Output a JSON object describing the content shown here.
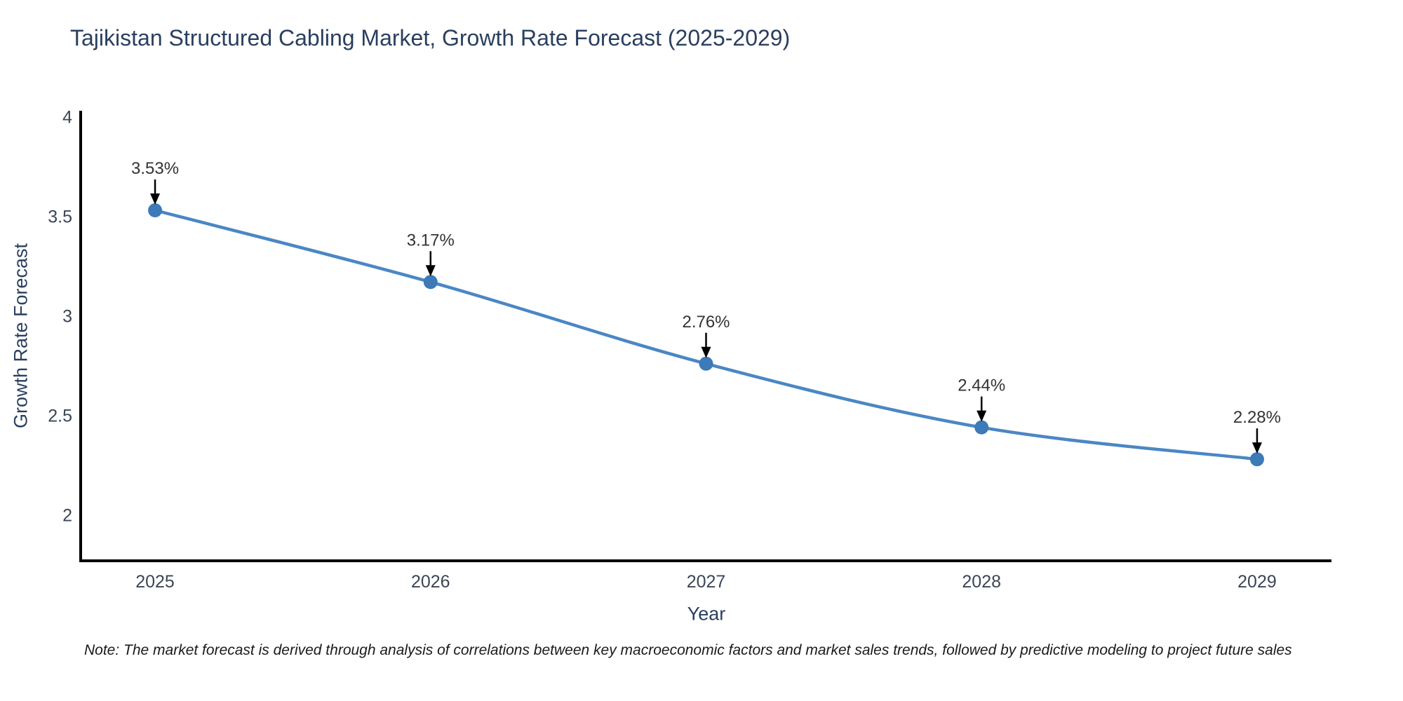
{
  "header": {
    "title": "Tajikistan Structured Cabling Market, Growth Rate Forecast (2025-2029)"
  },
  "footer": {
    "note": "Note: The market forecast is derived through analysis of correlations between key macroeconomic factors and market sales trends, followed by predictive modeling to project future sales"
  },
  "chart_data": {
    "type": "line",
    "title": "Tajikistan Structured Cabling Market, Growth Rate Forecast (2025-2029)",
    "x": [
      2025,
      2026,
      2027,
      2028,
      2029
    ],
    "y": [
      3.53,
      3.17,
      2.76,
      2.44,
      2.28
    ],
    "labels": [
      "3.53%",
      "3.17%",
      "2.76%",
      "2.44%",
      "2.28%"
    ],
    "xlabel": "Year",
    "ylabel": "Growth Rate Forecast",
    "yticks": [
      2,
      2.5,
      3,
      3.5,
      4
    ],
    "ylim": [
      1.77,
      4.03
    ],
    "xlim": [
      2024.73,
      2029.27
    ],
    "grid": false,
    "legend": "none",
    "line_color": "#4a87c4",
    "marker_color": "#3c7ab8",
    "axis_color": "#000000",
    "arrow_color": "#000000",
    "tick_color": "#3b4656",
    "annotation_color": "#333333",
    "title_color": "#2a3f5f"
  }
}
